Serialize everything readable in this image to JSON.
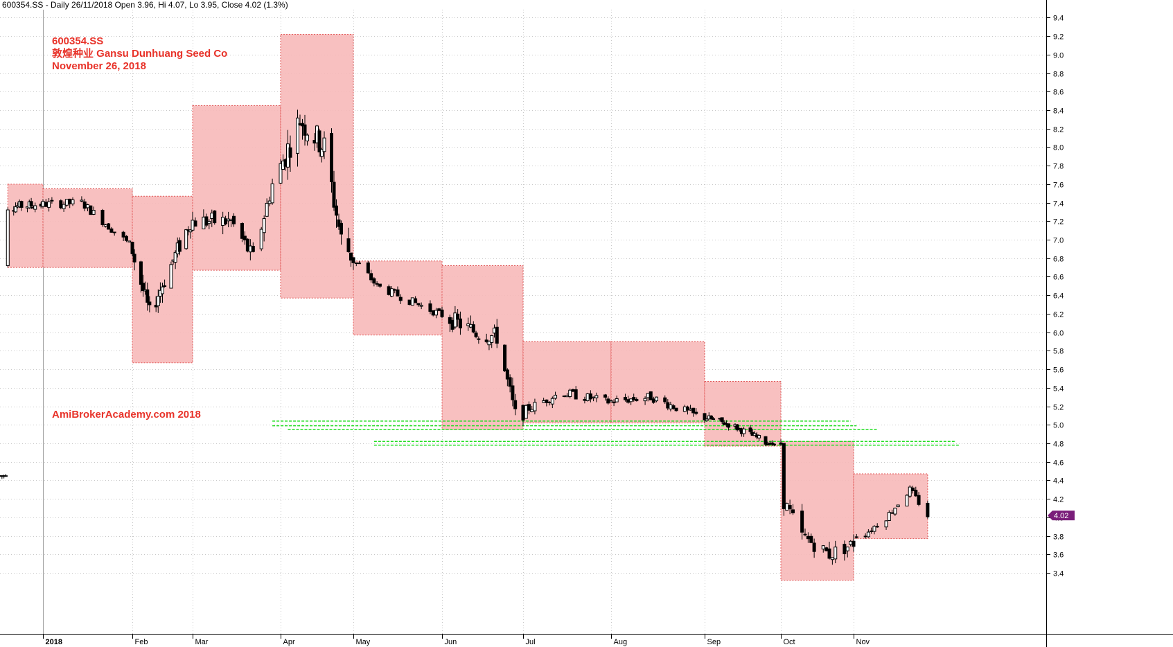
{
  "header": {
    "text": "600354.SS - Daily 26/11/2018 Open 3.96, Hi 4.07, Lo 3.95, Close 4.02 (1.3%)"
  },
  "annotations": {
    "ticker": "600354.SS",
    "company": "敦煌种业  Gansu Dunhuang Seed Co",
    "date": "November 26, 2018",
    "watermark": "AmiBrokerAcademy.com  2018"
  },
  "colors": {
    "text_red": "#e8332a",
    "box_fill": "#f7b9b9",
    "box_border": "#e05555",
    "support_line": "#22dd22",
    "last_price_bg": "#7a1e7a",
    "candle": "#000000"
  },
  "chart_data": {
    "type": "candlestick",
    "title": "600354.SS - Daily 26/11/2018 Open 3.96, Hi 4.07, Lo 3.95, Close 4.02 (1.3%)",
    "xlabel": "",
    "ylabel": "",
    "ylim": [
      3.3,
      9.55
    ],
    "grid": true,
    "y_ticks": [
      "3.4",
      "3.6",
      "3.8",
      "4.0",
      "4.2",
      "4.4",
      "4.6",
      "4.8",
      "5.0",
      "5.2",
      "5.4",
      "5.6",
      "5.8",
      "6.0",
      "6.2",
      "6.4",
      "6.6",
      "6.8",
      "7.0",
      "7.2",
      "7.4",
      "7.6",
      "7.8",
      "8.0",
      "8.2",
      "8.4",
      "8.6",
      "8.8",
      "9.0",
      "9.2",
      "9.4"
    ],
    "x_labels": [
      {
        "label": "2018",
        "date": "2018-01-02"
      },
      {
        "label": "Feb",
        "date": "2018-02-01"
      },
      {
        "label": "Mar",
        "date": "2018-03-01"
      },
      {
        "label": "Apr",
        "date": "2018-04-02"
      },
      {
        "label": "May",
        "date": "2018-05-02"
      },
      {
        "label": "Jun",
        "date": "2018-06-01"
      },
      {
        "label": "Jul",
        "date": "2018-07-02"
      },
      {
        "label": "Aug",
        "date": "2018-08-01"
      },
      {
        "label": "Sep",
        "date": "2018-09-03"
      },
      {
        "label": "Oct",
        "date": "2018-10-08"
      },
      {
        "label": "Nov",
        "date": "2018-11-01"
      }
    ],
    "last_price": "4.02",
    "ohlc": {
      "open": 3.96,
      "high": 4.07,
      "low": 3.95,
      "close": 4.02,
      "change": "1.3%"
    },
    "monthly_range_boxes": [
      {
        "start": "2017-12-15",
        "end": "2018-01-02",
        "low": 6.7,
        "high": 7.6
      },
      {
        "start": "2018-01-02",
        "end": "2018-02-01",
        "low": 6.7,
        "high": 7.55
      },
      {
        "start": "2018-02-01",
        "end": "2018-03-01",
        "low": 5.67,
        "high": 7.47
      },
      {
        "start": "2018-03-01",
        "end": "2018-04-02",
        "low": 6.67,
        "high": 8.45
      },
      {
        "start": "2018-04-02",
        "end": "2018-05-02",
        "low": 6.37,
        "high": 9.22
      },
      {
        "start": "2018-05-02",
        "end": "2018-06-01",
        "low": 5.97,
        "high": 6.77
      },
      {
        "start": "2018-06-01",
        "end": "2018-07-02",
        "low": 4.95,
        "high": 6.72
      },
      {
        "start": "2018-07-02",
        "end": "2018-08-01",
        "low": 5.02,
        "high": 5.9
      },
      {
        "start": "2018-08-01",
        "end": "2018-09-03",
        "low": 5.02,
        "high": 5.9
      },
      {
        "start": "2018-09-03",
        "end": "2018-10-08",
        "low": 4.77,
        "high": 5.47
      },
      {
        "start": "2018-10-08",
        "end": "2018-11-01",
        "low": 3.32,
        "high": 4.82
      },
      {
        "start": "2018-11-01",
        "end": "2018-11-26",
        "low": 3.77,
        "high": 4.47
      }
    ],
    "support_lines": [
      {
        "start": "2018-03-30",
        "end": "2018-10-31",
        "value": 5.04
      },
      {
        "start": "2018-03-30",
        "end": "2018-11-02",
        "value": 4.99
      },
      {
        "start": "2018-04-05",
        "end": "2018-11-09",
        "value": 4.95
      },
      {
        "start": "2018-05-09",
        "end": "2018-12-06",
        "value": 4.82
      },
      {
        "start": "2018-05-09",
        "end": "2018-12-07",
        "value": 4.78
      }
    ]
  }
}
